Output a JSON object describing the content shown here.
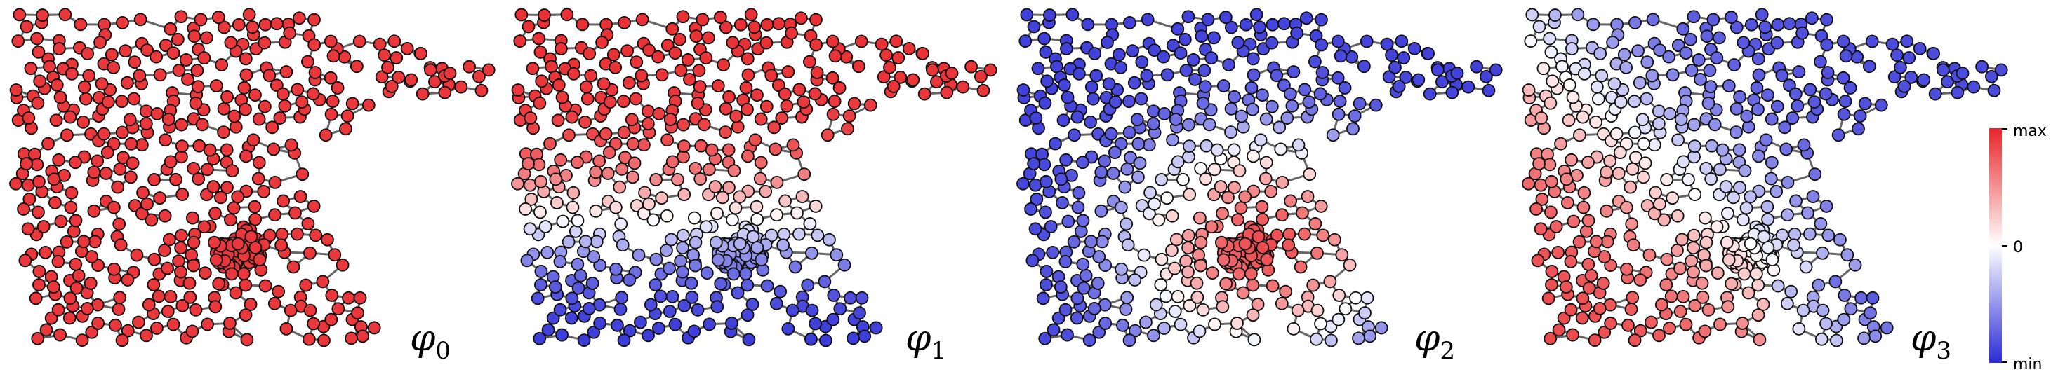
{
  "panels": [
    {
      "label_base": "φ",
      "label_sub": "0",
      "pattern": "uniform"
    },
    {
      "label_base": "φ",
      "label_sub": "1",
      "pattern": "vertical"
    },
    {
      "label_base": "φ",
      "label_sub": "2",
      "pattern": "center"
    },
    {
      "label_base": "φ",
      "label_sub": "3",
      "pattern": "diagonal"
    }
  ],
  "colorbar": {
    "max_label": "max",
    "zero_label": "0",
    "min_label": "min",
    "colors": {
      "max": "#e8262a",
      "zero": "#ffffff",
      "min": "#2b2bd6"
    }
  },
  "node_style": {
    "edge": "#666666",
    "outline": "#111111"
  }
}
